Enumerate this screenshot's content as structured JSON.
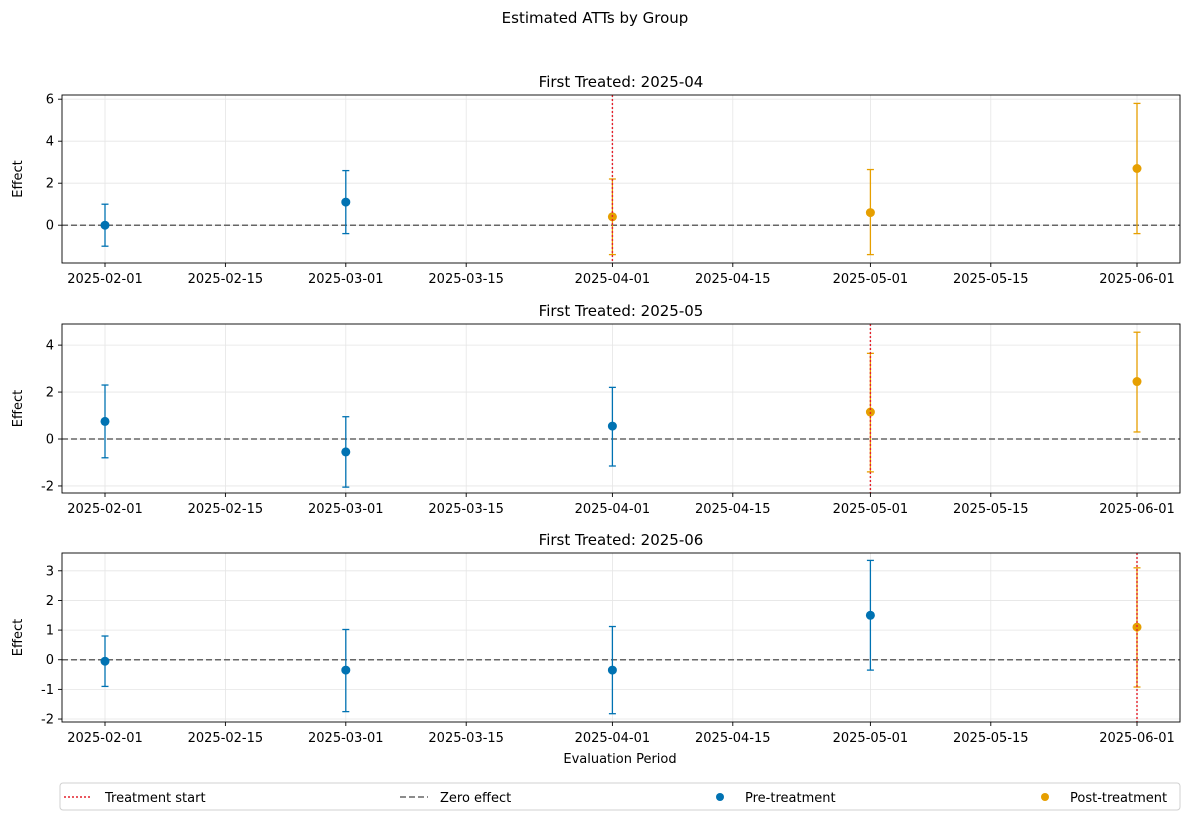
{
  "figure": {
    "suptitle": "Estimated ATTs by Group",
    "xlabel": "Evaluation Period"
  },
  "colors": {
    "pre": "#0072B2",
    "post": "#E69F00",
    "treatment_line": "#E4202B",
    "zero_line": "#666666",
    "grid": "#e5e5e5"
  },
  "legend": {
    "position": "bottom",
    "items": [
      {
        "label": "Treatment start",
        "style": "dotted-line",
        "color": "#E4202B"
      },
      {
        "label": "Zero effect",
        "style": "dashed-line",
        "color": "#666666"
      },
      {
        "label": "Pre-treatment",
        "style": "marker",
        "color": "#0072B2"
      },
      {
        "label": "Post-treatment",
        "style": "marker",
        "color": "#E69F00"
      }
    ]
  },
  "chart_data": [
    {
      "type": "scatter",
      "title": "First Treated: 2025-04",
      "ylabel": "Effect",
      "treatment_start": "2025-04-01",
      "xlim": [
        "2025-01-27",
        "2025-06-06"
      ],
      "xticks": [
        "2025-02-01",
        "2025-02-15",
        "2025-03-01",
        "2025-03-15",
        "2025-04-01",
        "2025-04-15",
        "2025-05-01",
        "2025-05-15",
        "2025-06-01"
      ],
      "ylim": [
        -1.8,
        6.2
      ],
      "yticks": [
        0,
        2,
        4,
        6
      ],
      "grid": true,
      "points": [
        {
          "x": "2025-02-01",
          "y": 0.0,
          "lo": -1.0,
          "hi": 1.0,
          "phase": "pre"
        },
        {
          "x": "2025-03-01",
          "y": 1.1,
          "lo": -0.4,
          "hi": 2.6,
          "phase": "pre"
        },
        {
          "x": "2025-04-01",
          "y": 0.4,
          "lo": -1.4,
          "hi": 2.2,
          "phase": "post"
        },
        {
          "x": "2025-05-01",
          "y": 0.6,
          "lo": -1.4,
          "hi": 2.65,
          "phase": "post"
        },
        {
          "x": "2025-06-01",
          "y": 2.7,
          "lo": -0.4,
          "hi": 5.8,
          "phase": "post"
        }
      ]
    },
    {
      "type": "scatter",
      "title": "First Treated: 2025-05",
      "ylabel": "Effect",
      "treatment_start": "2025-05-01",
      "xlim": [
        "2025-01-27",
        "2025-06-06"
      ],
      "xticks": [
        "2025-02-01",
        "2025-02-15",
        "2025-03-01",
        "2025-03-15",
        "2025-04-01",
        "2025-04-15",
        "2025-05-01",
        "2025-05-15",
        "2025-06-01"
      ],
      "ylim": [
        -2.3,
        4.9
      ],
      "yticks": [
        -2,
        0,
        2,
        4
      ],
      "grid": true,
      "points": [
        {
          "x": "2025-02-01",
          "y": 0.75,
          "lo": -0.8,
          "hi": 2.3,
          "phase": "pre"
        },
        {
          "x": "2025-03-01",
          "y": -0.55,
          "lo": -2.05,
          "hi": 0.95,
          "phase": "pre"
        },
        {
          "x": "2025-04-01",
          "y": 0.55,
          "lo": -1.15,
          "hi": 2.2,
          "phase": "pre"
        },
        {
          "x": "2025-05-01",
          "y": 1.15,
          "lo": -1.4,
          "hi": 3.65,
          "phase": "post"
        },
        {
          "x": "2025-06-01",
          "y": 2.45,
          "lo": 0.3,
          "hi": 4.55,
          "phase": "post"
        }
      ]
    },
    {
      "type": "scatter",
      "title": "First Treated: 2025-06",
      "ylabel": "Effect",
      "treatment_start": "2025-06-01",
      "xlim": [
        "2025-01-27",
        "2025-06-06"
      ],
      "xticks": [
        "2025-02-01",
        "2025-02-15",
        "2025-03-01",
        "2025-03-15",
        "2025-04-01",
        "2025-04-15",
        "2025-05-01",
        "2025-05-15",
        "2025-06-01"
      ],
      "ylim": [
        -2.1,
        3.6
      ],
      "yticks": [
        -2,
        -1,
        0,
        1,
        2,
        3
      ],
      "grid": true,
      "points": [
        {
          "x": "2025-02-01",
          "y": -0.05,
          "lo": -0.9,
          "hi": 0.8,
          "phase": "pre"
        },
        {
          "x": "2025-03-01",
          "y": -0.35,
          "lo": -1.75,
          "hi": 1.02,
          "phase": "pre"
        },
        {
          "x": "2025-04-01",
          "y": -0.35,
          "lo": -1.82,
          "hi": 1.12,
          "phase": "pre"
        },
        {
          "x": "2025-05-01",
          "y": 1.5,
          "lo": -0.35,
          "hi": 3.35,
          "phase": "pre"
        },
        {
          "x": "2025-06-01",
          "y": 1.1,
          "lo": -0.92,
          "hi": 3.1,
          "phase": "post"
        }
      ]
    }
  ]
}
